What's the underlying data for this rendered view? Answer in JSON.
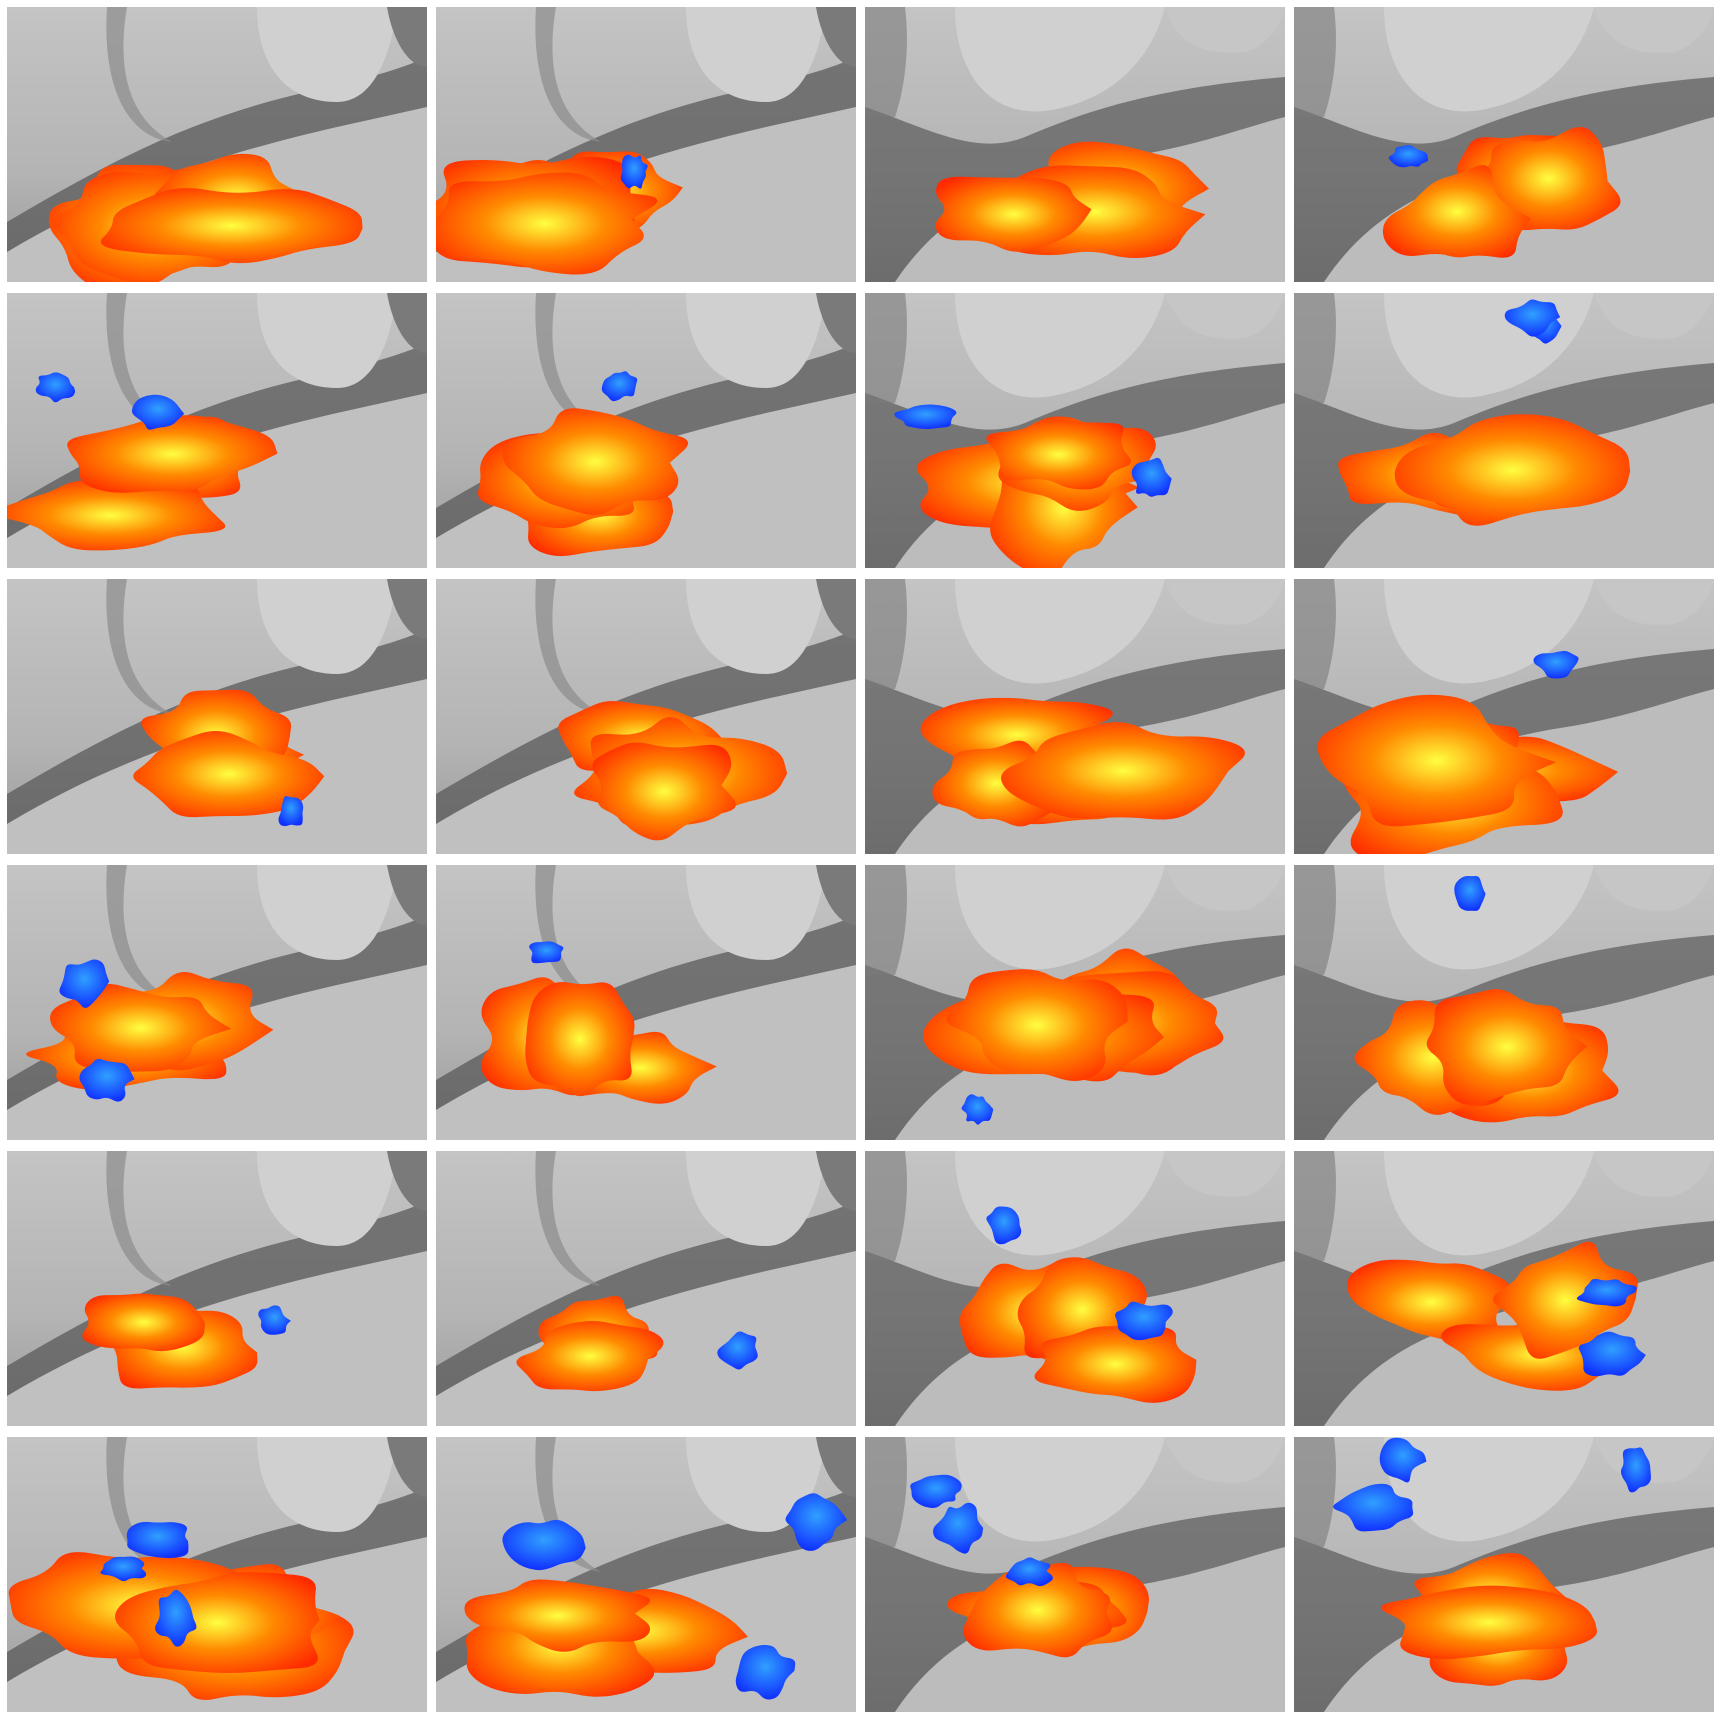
{
  "figure": {
    "rows": 6,
    "columns": 4,
    "colors": {
      "background": "#ffffff",
      "cortex_light": "#c8c8c8",
      "cortex_mid": "#a8a8a8",
      "sulcus_dark": "#5a5a5a",
      "activation_hot_low": "#ff2a00",
      "activation_hot_mid": "#ff8a00",
      "activation_hot_high": "#ffff40",
      "activation_cold": "#1030ff",
      "activation_cold_light": "#30a0ff"
    },
    "panel_views": [
      "view-a",
      "view-a",
      "view-b",
      "view-b"
    ],
    "panels": [
      {
        "view": "a",
        "hot": "large",
        "cold": "none"
      },
      {
        "view": "a",
        "hot": "large",
        "cold": "small"
      },
      {
        "view": "b",
        "hot": "medium",
        "cold": "none"
      },
      {
        "view": "b",
        "hot": "medium",
        "cold": "small"
      },
      {
        "view": "a",
        "hot": "medium",
        "cold": "medium"
      },
      {
        "view": "a",
        "hot": "medium",
        "cold": "small"
      },
      {
        "view": "b",
        "hot": "large",
        "cold": "medium"
      },
      {
        "view": "b",
        "hot": "medium",
        "cold": "medium"
      },
      {
        "view": "a",
        "hot": "medium",
        "cold": "small"
      },
      {
        "view": "a",
        "hot": "medium",
        "cold": "none"
      },
      {
        "view": "b",
        "hot": "large",
        "cold": "none"
      },
      {
        "view": "b",
        "hot": "large",
        "cold": "small"
      },
      {
        "view": "a",
        "hot": "medium",
        "cold": "medium"
      },
      {
        "view": "a",
        "hot": "medium",
        "cold": "small"
      },
      {
        "view": "b",
        "hot": "large",
        "cold": "small"
      },
      {
        "view": "b",
        "hot": "medium",
        "cold": "small"
      },
      {
        "view": "a",
        "hot": "small",
        "cold": "small"
      },
      {
        "view": "a",
        "hot": "small",
        "cold": "small"
      },
      {
        "view": "b",
        "hot": "medium",
        "cold": "medium"
      },
      {
        "view": "b",
        "hot": "medium",
        "cold": "medium"
      },
      {
        "view": "a",
        "hot": "large",
        "cold": "large"
      },
      {
        "view": "a",
        "hot": "medium",
        "cold": "large"
      },
      {
        "view": "b",
        "hot": "medium",
        "cold": "large"
      },
      {
        "view": "b",
        "hot": "medium",
        "cold": "large"
      }
    ]
  }
}
